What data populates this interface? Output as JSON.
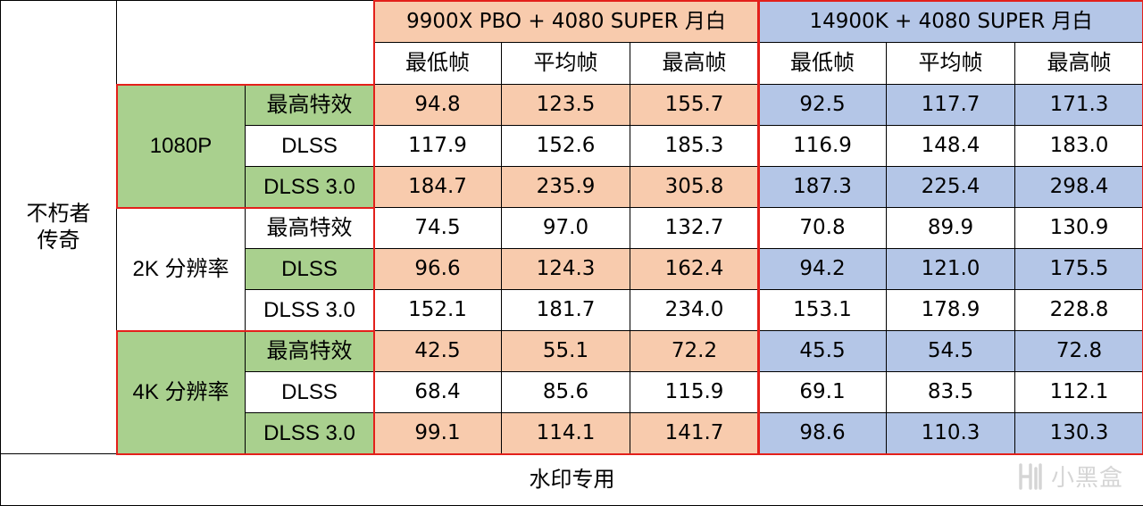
{
  "table": {
    "game": "不朽者\n传奇",
    "footer": "水印专用",
    "colors": {
      "amd": "#f8cbad",
      "intel": "#b4c6e7",
      "green": "#a9d08e",
      "white": "#ffffff",
      "red_line": "#e3201b"
    },
    "configs": [
      {
        "name": "9900X PBO + 4080 SUPER 月白",
        "color_key": "amd"
      },
      {
        "name": "14900K + 4080 SUPER 月白",
        "color_key": "intel"
      }
    ],
    "metrics": [
      "最低帧",
      "平均帧",
      "最高帧"
    ],
    "resolutions": [
      {
        "name": "1080P",
        "settings": [
          {
            "name": "最高特效",
            "shaded": true,
            "values": [
              "94.8",
              "123.5",
              "155.7",
              "92.5",
              "117.7",
              "171.3"
            ]
          },
          {
            "name": "DLSS",
            "shaded": false,
            "values": [
              "117.9",
              "152.6",
              "185.3",
              "116.9",
              "148.4",
              "183.0"
            ]
          },
          {
            "name": "DLSS 3.0",
            "shaded": true,
            "values": [
              "184.7",
              "235.9",
              "305.8",
              "187.3",
              "225.4",
              "298.4"
            ]
          }
        ]
      },
      {
        "name": "2K 分辨率",
        "settings": [
          {
            "name": "最高特效",
            "shaded": false,
            "values": [
              "74.5",
              "97.0",
              "132.7",
              "70.8",
              "89.9",
              "130.9"
            ]
          },
          {
            "name": "DLSS",
            "shaded": true,
            "values": [
              "96.6",
              "124.3",
              "162.4",
              "94.2",
              "121.0",
              "175.5"
            ]
          },
          {
            "name": "DLSS 3.0",
            "shaded": false,
            "values": [
              "152.1",
              "181.7",
              "234.0",
              "153.1",
              "178.9",
              "228.8"
            ]
          }
        ]
      },
      {
        "name": "4K 分辨率",
        "settings": [
          {
            "name": "最高特效",
            "shaded": true,
            "values": [
              "42.5",
              "55.1",
              "72.2",
              "45.5",
              "54.5",
              "72.8"
            ]
          },
          {
            "name": "DLSS",
            "shaded": false,
            "values": [
              "68.4",
              "85.6",
              "115.9",
              "69.1",
              "83.5",
              "112.1"
            ]
          },
          {
            "name": "DLSS 3.0",
            "shaded": true,
            "values": [
              "99.1",
              "114.1",
              "141.7",
              "98.6",
              "110.3",
              "130.3"
            ]
          }
        ]
      }
    ]
  },
  "watermark": {
    "text": "小黑盒",
    "icon": "heybox-logo-icon"
  }
}
